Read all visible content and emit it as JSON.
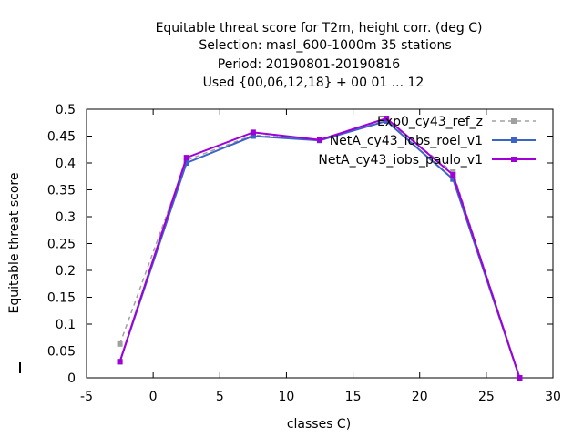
{
  "chart_data": {
    "type": "line",
    "title_lines": [
      "Equitable threat score  for T2m, height corr. (deg C)",
      "Selection: masl_600-1000m     35 stations",
      "Period: 20190801-20190816",
      "Used {00,06,12,18} + 00 01 ... 12"
    ],
    "xlabel": "classes C)",
    "ylabel": "Equitable threat score",
    "xlim": [
      -5,
      30
    ],
    "ylim": [
      0,
      0.5
    ],
    "xticks": [
      -5,
      0,
      5,
      10,
      15,
      20,
      25,
      30
    ],
    "yticks": [
      0,
      0.05,
      0.1,
      0.15,
      0.2,
      0.25,
      0.3,
      0.35,
      0.4,
      0.45,
      0.5
    ],
    "ytick_labels": [
      "0",
      "0.05",
      "0.1",
      "0.15",
      "0.2",
      "0.25",
      "0.3",
      "0.35",
      "0.4",
      "0.45",
      "0.5"
    ],
    "grid": false,
    "legend_position": "top-right",
    "series": [
      {
        "name": "Exp0_cy43_ref_z",
        "color": "#a0a0a0",
        "dashed": true,
        "x": [
          -2.5,
          2.5,
          7.5,
          12.5,
          17.5,
          22.5,
          27.5
        ],
        "y": [
          0.063,
          0.405,
          0.452,
          0.443,
          0.479,
          0.383,
          0.0
        ]
      },
      {
        "name": "NetA_cy43_iobs_roel_v1",
        "color": "#3c64c8",
        "dashed": false,
        "x": [
          -2.5,
          2.5,
          7.5,
          12.5,
          17.5,
          22.5,
          27.5
        ],
        "y": [
          0.03,
          0.4,
          0.45,
          0.442,
          0.478,
          0.37,
          0.0
        ]
      },
      {
        "name": "NetA_cy43_iobs_paulo_v1",
        "color": "#a000d8",
        "dashed": false,
        "x": [
          -2.5,
          2.5,
          7.5,
          12.5,
          17.5,
          22.5,
          27.5
        ],
        "y": [
          0.03,
          0.41,
          0.457,
          0.443,
          0.483,
          0.378,
          0.0
        ]
      }
    ]
  }
}
